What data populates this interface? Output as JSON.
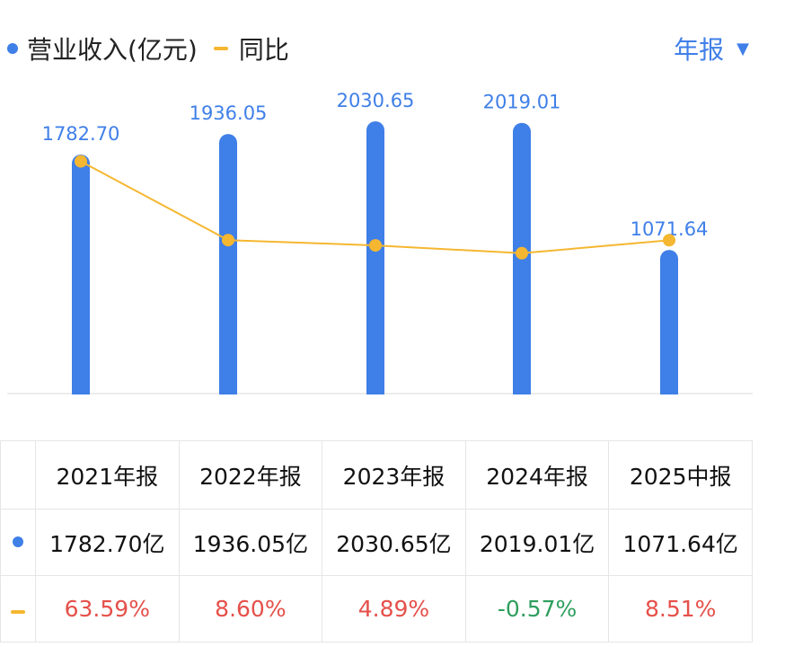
{
  "legend": {
    "revenue_label": "营业收入(亿元)",
    "yoy_label": "同比",
    "revenue_icon": "blue-dot",
    "yoy_icon": "orange-dash"
  },
  "period_selector": {
    "label": "年报",
    "icon": "caret-down"
  },
  "colors": {
    "bar": "#3f7fe8",
    "line": "#f5b731",
    "positive": "#e5504a",
    "negative": "#2e9f5e",
    "accent": "#3f7fe8"
  },
  "chart_data": {
    "type": "bar",
    "categories": [
      "2021年报",
      "2022年报",
      "2023年报",
      "2024年报",
      "2025中报"
    ],
    "series": [
      {
        "name": "营业收入(亿元)",
        "type": "bar",
        "values": [
          1782.7,
          1936.05,
          2030.65,
          2019.01,
          1071.64
        ],
        "data_labels": [
          "1782.70",
          "1936.05",
          "2030.65",
          "2019.01",
          "1071.64"
        ]
      },
      {
        "name": "同比",
        "type": "line",
        "values": [
          63.59,
          8.6,
          4.89,
          -0.57,
          8.51
        ]
      }
    ],
    "legend_position": "top-left",
    "grid": false
  },
  "table": {
    "headers": [
      "2021年报",
      "2022年报",
      "2023年报",
      "2024年报",
      "2025中报"
    ],
    "revenue_row": [
      "1782.70亿",
      "1936.05亿",
      "2030.65亿",
      "2019.01亿",
      "1071.64亿"
    ],
    "yoy_row": [
      "63.59%",
      "8.60%",
      "4.89%",
      "-0.57%",
      "8.51%"
    ]
  }
}
